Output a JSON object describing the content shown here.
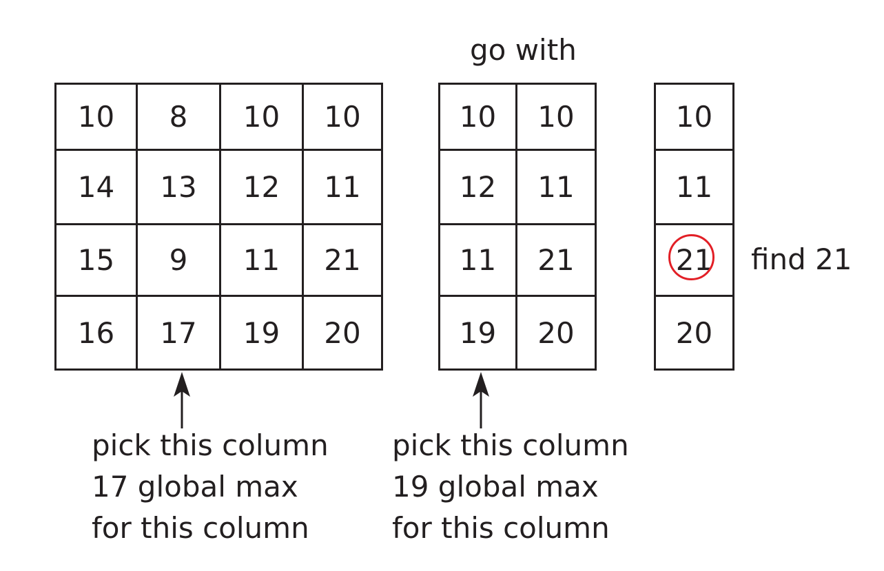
{
  "grids": {
    "a": {
      "rows": [
        [
          "10",
          "8",
          "10",
          "10"
        ],
        [
          "14",
          "13",
          "12",
          "11"
        ],
        [
          "15",
          "9",
          "11",
          "21"
        ],
        [
          "16",
          "17",
          "19",
          "20"
        ]
      ]
    },
    "b": {
      "rows": [
        [
          "10",
          "10"
        ],
        [
          "12",
          "11"
        ],
        [
          "11",
          "21"
        ],
        [
          "19",
          "20"
        ]
      ]
    },
    "c": {
      "rows": [
        [
          "10"
        ],
        [
          "11"
        ],
        [
          "21"
        ],
        [
          "20"
        ]
      ]
    }
  },
  "labels": {
    "go_with": "go with",
    "find": "find 21"
  },
  "captions": {
    "a": [
      "pick this column",
      "17 global max",
      "for this column"
    ],
    "b": [
      "pick this column",
      "19 global max",
      "for this column"
    ]
  },
  "colors": {
    "stroke": "#231f20",
    "highlight": "#e21f26"
  },
  "highlight": {
    "grid": "c",
    "row": 2,
    "col": 0,
    "value": "21"
  }
}
